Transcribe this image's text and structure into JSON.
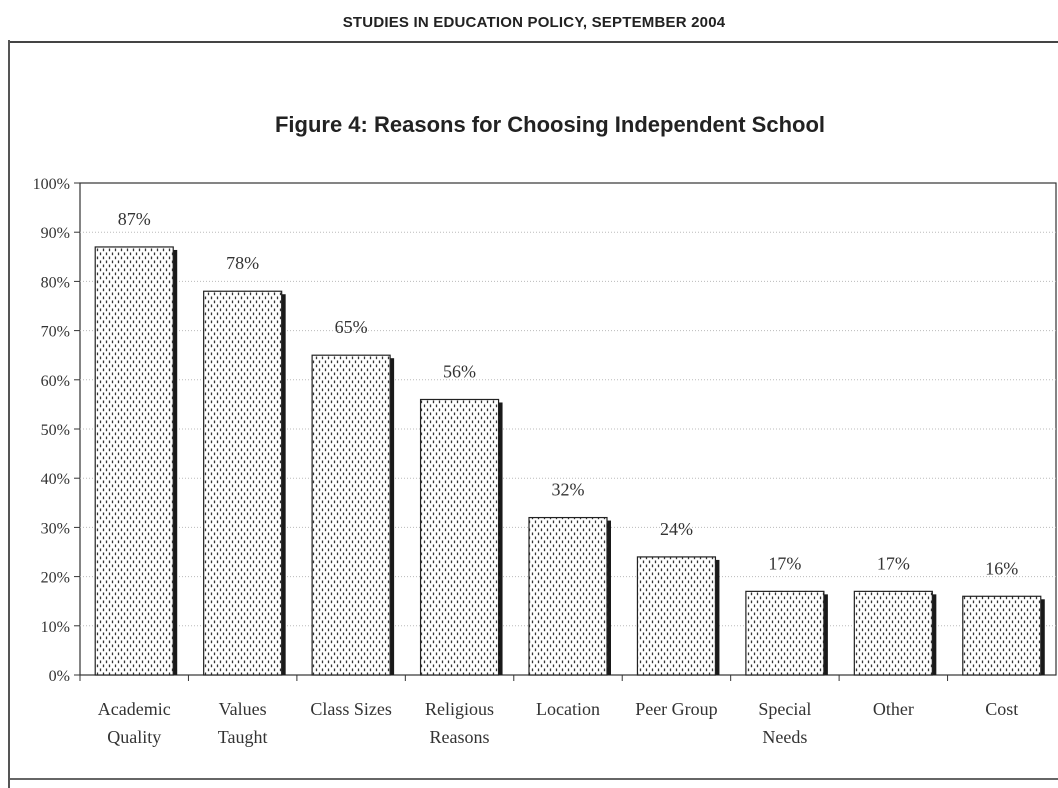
{
  "header": {
    "title": "STUDIES IN EDUCATION POLICY, SEPTEMBER 2004"
  },
  "chart_data": {
    "type": "bar",
    "title": "Figure 4: Reasons for Choosing Independent School",
    "xlabel": "",
    "ylabel": "",
    "ylim": [
      0,
      100
    ],
    "yticks": [
      "0%",
      "10%",
      "20%",
      "30%",
      "40%",
      "50%",
      "60%",
      "70%",
      "80%",
      "90%",
      "100%"
    ],
    "categories": [
      [
        "Academic",
        "Quality"
      ],
      [
        "Values",
        "Taught"
      ],
      [
        "Class Sizes"
      ],
      [
        "Religious",
        "Reasons"
      ],
      [
        "Location"
      ],
      [
        "Peer Group"
      ],
      [
        "Special",
        "Needs"
      ],
      [
        "Other"
      ],
      [
        "Cost"
      ]
    ],
    "values": [
      87,
      78,
      65,
      56,
      32,
      24,
      17,
      17,
      16
    ],
    "data_labels": [
      "87%",
      "78%",
      "65%",
      "56%",
      "32%",
      "24%",
      "17%",
      "17%",
      "16%"
    ],
    "grid": true,
    "legend": "none",
    "colors": {
      "bar_fill": "#ffffff",
      "bar_pattern": "#333333",
      "bar_shadow": "#1a1a1a",
      "axis": "#333333",
      "grid": "#bbbbbb"
    }
  }
}
